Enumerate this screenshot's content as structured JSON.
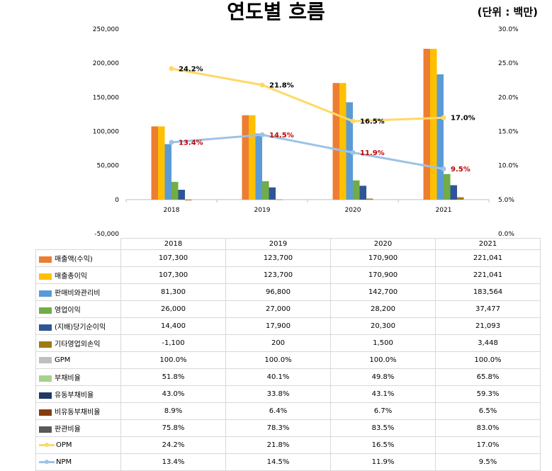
{
  "title": "연도별 흐름",
  "unit": "(단위 : 백만)",
  "chart_data": {
    "type": "bar",
    "categories": [
      "2018",
      "2019",
      "2020",
      "2021"
    ],
    "ylim": [
      -50000,
      250000
    ],
    "y_ticks": [
      "250,000",
      "200,000",
      "150,000",
      "100,000",
      "50,000",
      "0",
      "-50,000"
    ],
    "y2lim": [
      0,
      30
    ],
    "y2_ticks": [
      "30.0%",
      "25.0%",
      "20.0%",
      "15.0%",
      "10.0%",
      "5.0%",
      "0.0%"
    ],
    "bar_series": [
      {
        "name": "매출액(수익)",
        "color": "#ED7D31",
        "values": [
          107300,
          123700,
          170900,
          221041
        ]
      },
      {
        "name": "매출총이익",
        "color": "#FFC000",
        "values": [
          107300,
          123700,
          170900,
          221041
        ]
      },
      {
        "name": "판매비와관리비",
        "color": "#5B9BD5",
        "values": [
          81300,
          96800,
          142700,
          183564
        ]
      },
      {
        "name": "영업이익",
        "color": "#70AD47",
        "values": [
          26000,
          27000,
          28200,
          37477
        ]
      },
      {
        "name": "(지배)당기순이익",
        "color": "#2F5597",
        "values": [
          14400,
          17900,
          20300,
          21093
        ]
      },
      {
        "name": "기타영업외손익",
        "color": "#9E7A10",
        "values": [
          -1100,
          200,
          1500,
          3448
        ]
      }
    ],
    "line_series": [
      {
        "name": "OPM",
        "color": "#FFD966",
        "values": [
          24.2,
          21.8,
          16.5,
          17.0
        ],
        "labels": [
          "24.2%",
          "21.8%",
          "16.5%",
          "17.0%"
        ],
        "label_color": "#000000"
      },
      {
        "name": "NPM",
        "color": "#9DC3E6",
        "values": [
          13.4,
          14.5,
          11.9,
          9.5
        ],
        "labels": [
          "13.4%",
          "14.5%",
          "11.9%",
          "9.5%"
        ],
        "label_color": "#C00000"
      }
    ],
    "legend": "table"
  },
  "table": {
    "columns": [
      "2018",
      "2019",
      "2020",
      "2021"
    ],
    "rows": [
      {
        "label": "매출액(수익)",
        "swatch": "#ED7D31",
        "kind": "bar",
        "cells": [
          "107,300",
          "123,700",
          "170,900",
          "221,041"
        ]
      },
      {
        "label": "매출총이익",
        "swatch": "#FFC000",
        "kind": "bar",
        "cells": [
          "107,300",
          "123,700",
          "170,900",
          "221,041"
        ]
      },
      {
        "label": "판매비와관리비",
        "swatch": "#5B9BD5",
        "kind": "bar",
        "cells": [
          "81,300",
          "96,800",
          "142,700",
          "183,564"
        ]
      },
      {
        "label": "영업이익",
        "swatch": "#70AD47",
        "kind": "bar",
        "cells": [
          "26,000",
          "27,000",
          "28,200",
          "37,477"
        ]
      },
      {
        "label": "(지배)당기순이익",
        "swatch": "#2F5597",
        "kind": "bar",
        "cells": [
          "14,400",
          "17,900",
          "20,300",
          "21,093"
        ]
      },
      {
        "label": "기타영업외손익",
        "swatch": "#9E7A10",
        "kind": "bar",
        "cells": [
          "-1,100",
          "200",
          "1,500",
          "3,448"
        ]
      },
      {
        "label": "GPM",
        "swatch": "#BFBFBF",
        "kind": "bar",
        "cells": [
          "100.0%",
          "100.0%",
          "100.0%",
          "100.0%"
        ]
      },
      {
        "label": "부채비율",
        "swatch": "#A9D18E",
        "kind": "bar",
        "cells": [
          "51.8%",
          "40.1%",
          "49.8%",
          "65.8%"
        ]
      },
      {
        "label": "유동부채비율",
        "swatch": "#203864",
        "kind": "bar",
        "cells": [
          "43.0%",
          "33.8%",
          "43.1%",
          "59.3%"
        ]
      },
      {
        "label": "비유동부채비율",
        "swatch": "#843C0C",
        "kind": "bar",
        "cells": [
          "8.9%",
          "6.4%",
          "6.7%",
          "6.5%"
        ]
      },
      {
        "label": "판관비율",
        "swatch": "#595959",
        "kind": "bar",
        "cells": [
          "75.8%",
          "78.3%",
          "83.5%",
          "83.0%"
        ]
      },
      {
        "label": "OPM",
        "swatch": "#FFD966",
        "kind": "line",
        "cells": [
          "24.2%",
          "21.8%",
          "16.5%",
          "17.0%"
        ]
      },
      {
        "label": "NPM",
        "swatch": "#9DC3E6",
        "kind": "line",
        "cells": [
          "13.4%",
          "14.5%",
          "11.9%",
          "9.5%"
        ]
      }
    ]
  }
}
